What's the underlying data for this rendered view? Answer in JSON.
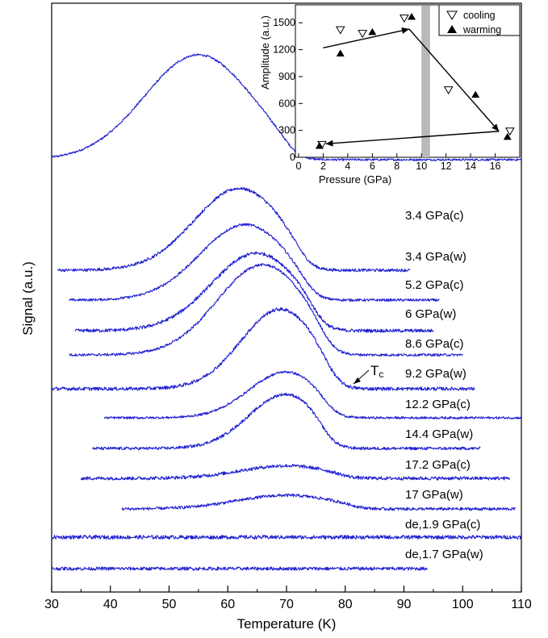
{
  "chart_data": [
    {
      "type": "line",
      "xlabel": "Temperature (K)",
      "ylabel": "Signal (a.u.)",
      "xlim": [
        30,
        110
      ],
      "xticks": [
        30,
        40,
        50,
        60,
        70,
        80,
        90,
        100,
        110
      ],
      "line_color": "#1f1fd0",
      "annotation": "Tc",
      "series": [
        {
          "name": "3.4 GPa(c)",
          "x_range": [
            30,
            110
          ],
          "peak_x": 55,
          "peak_amp": 1.0,
          "width": 13,
          "tc": 71,
          "base": 0,
          "noise": 0.01
        },
        {
          "name": "3.4 GPa(w)",
          "x_range": [
            31,
            91
          ],
          "peak_x": 62,
          "peak_amp": 0.78,
          "width": 11,
          "tc": 73,
          "base": 0,
          "noise": 0.014
        },
        {
          "name": "5.2 GPa(c)",
          "x_range": [
            33,
            96
          ],
          "peak_x": 63,
          "peak_amp": 0.72,
          "width": 11,
          "tc": 74,
          "base": 0,
          "noise": 0.012
        },
        {
          "name": "6 GPa(w)",
          "x_range": [
            34,
            95
          ],
          "peak_x": 65,
          "peak_amp": 0.74,
          "width": 11,
          "tc": 75.5,
          "base": 0,
          "noise": 0.016
        },
        {
          "name": "8.6 GPa(c)",
          "x_range": [
            33,
            100
          ],
          "peak_x": 66,
          "peak_amp": 0.86,
          "width": 11,
          "tc": 77,
          "base": 0,
          "noise": 0.012
        },
        {
          "name": "9.2 GPa(w)",
          "x_range": [
            30,
            102
          ],
          "peak_x": 69,
          "peak_amp": 0.76,
          "width": 9.5,
          "tc": 78,
          "base": 0,
          "noise": 0.016
        },
        {
          "name": "12.2 GPa(c)",
          "x_range": [
            39,
            110
          ],
          "peak_x": 70,
          "peak_amp": 0.44,
          "width": 9,
          "tc": 77.5,
          "base": 0,
          "noise": 0.011
        },
        {
          "name": "14.4 GPa(w)",
          "x_range": [
            37,
            103
          ],
          "peak_x": 70,
          "peak_amp": 0.52,
          "width": 9,
          "tc": 77,
          "base": 0,
          "noise": 0.014
        },
        {
          "name": "17.2 GPa(c)",
          "x_range": [
            35,
            108
          ],
          "peak_x": 70,
          "peak_amp": 0.12,
          "width": 11,
          "tc": 80,
          "base": 0,
          "noise": 0.016
        },
        {
          "name": "17 GPa(w)",
          "x_range": [
            42,
            109
          ],
          "peak_x": 70,
          "peak_amp": 0.13,
          "width": 12,
          "tc": 82,
          "base": 0,
          "noise": 0.014
        },
        {
          "name": "de,1.9 GPa(c)",
          "x_range": [
            30,
            110
          ],
          "peak_x": 60,
          "peak_amp": 0.0,
          "width": 10,
          "tc": 80,
          "base": 0,
          "noise": 0.018
        },
        {
          "name": "de,1.7 GPa(w)",
          "x_range": [
            30,
            94
          ],
          "peak_x": 60,
          "peak_amp": 0.0,
          "width": 10,
          "tc": 80,
          "base": 0,
          "noise": 0.016
        }
      ]
    },
    {
      "type": "scatter",
      "xlabel": "Pressure (GPa)",
      "ylabel": "Amplitude (a.u.)",
      "xlim": [
        0,
        18
      ],
      "ylim": [
        0,
        1700
      ],
      "xticks": [
        0,
        2,
        4,
        6,
        8,
        10,
        12,
        14,
        16
      ],
      "yticks": [
        0,
        300,
        600,
        900,
        1200,
        1500
      ],
      "shaded_band": [
        10.0,
        10.7
      ],
      "legend_position": "top-right",
      "series": [
        {
          "name": "cooling",
          "marker": "open-triangle-down",
          "points": [
            [
              3.4,
              1420
            ],
            [
              5.2,
              1380
            ],
            [
              8.6,
              1550
            ],
            [
              12.2,
              750
            ],
            [
              17.2,
              290
            ],
            [
              1.9,
              140
            ]
          ]
        },
        {
          "name": "warming",
          "marker": "filled-triangle-up",
          "points": [
            [
              3.4,
              1160
            ],
            [
              6.0,
              1400
            ],
            [
              9.2,
              1570
            ],
            [
              14.4,
              700
            ],
            [
              17.0,
              230
            ],
            [
              1.7,
              130
            ]
          ]
        }
      ],
      "arrows": [
        {
          "from": [
            2.0,
            1220
          ],
          "to": [
            9.0,
            1430
          ]
        },
        {
          "from": [
            9.0,
            1430
          ],
          "to": [
            16.3,
            290
          ]
        },
        {
          "from": [
            16.3,
            290
          ],
          "to": [
            2.2,
            150
          ]
        }
      ]
    }
  ]
}
